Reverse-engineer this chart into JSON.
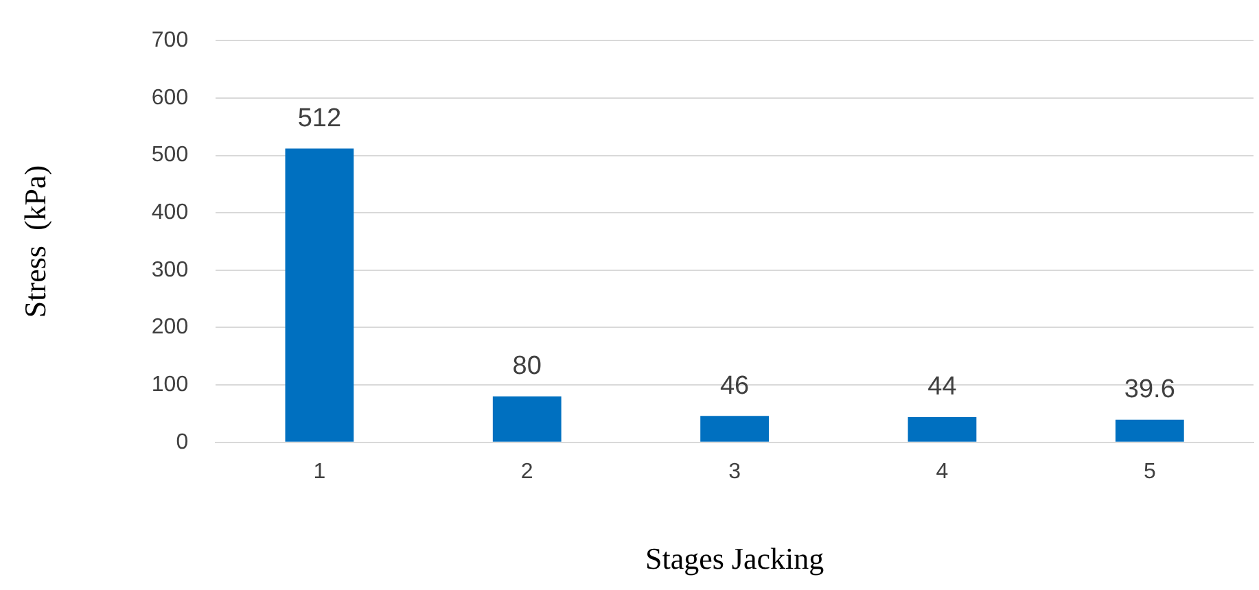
{
  "chart_data": {
    "type": "bar",
    "xlabel": "Stages Jacking",
    "ylabel": "Stress  (kPa)",
    "categories": [
      "1",
      "2",
      "3",
      "4",
      "5"
    ],
    "values": [
      512,
      80,
      46,
      44,
      39.6
    ],
    "color": "#0070c0",
    "ylim": [
      0,
      700
    ],
    "yticks": [
      0,
      100,
      200,
      300,
      400,
      500,
      600,
      700
    ],
    "grid": "y",
    "legend": false,
    "data_labels": true
  }
}
